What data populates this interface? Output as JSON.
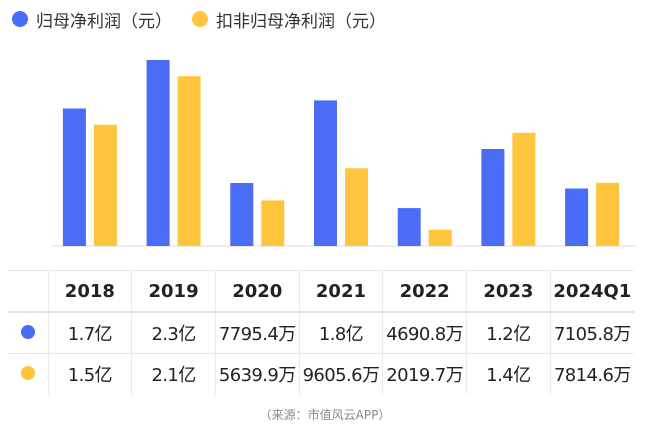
{
  "colors": {
    "net_profit": "#4A6CF7",
    "deducted_net_profit": "#FFC53D"
  },
  "chart_data": {
    "type": "bar",
    "categories": [
      "2018",
      "2019",
      "2020",
      "2021",
      "2022",
      "2023",
      "2024Q1"
    ],
    "series": [
      {
        "name": "归母净利润（元）",
        "values": [
          1.7,
          2.3,
          0.77954,
          1.8,
          0.46908,
          1.2,
          0.71058
        ],
        "display": [
          "1.7亿",
          "2.3亿",
          "7795.4万",
          "1.8亿",
          "4690.8万",
          "1.2亿",
          "7105.8万"
        ]
      },
      {
        "name": "扣非归母净利润（元）",
        "values": [
          1.5,
          2.1,
          0.56399,
          0.96056,
          0.20197,
          1.4,
          0.78146
        ],
        "display": [
          "1.5亿",
          "2.1亿",
          "5639.9万",
          "9605.6万",
          "2019.7万",
          "1.4亿",
          "7814.6万"
        ]
      }
    ],
    "title": "",
    "xlabel": "",
    "ylabel": "",
    "ylim": [
      0,
      2.3
    ],
    "grid": false,
    "legend": "top-left"
  },
  "source": "（来源：市值风云APP）"
}
